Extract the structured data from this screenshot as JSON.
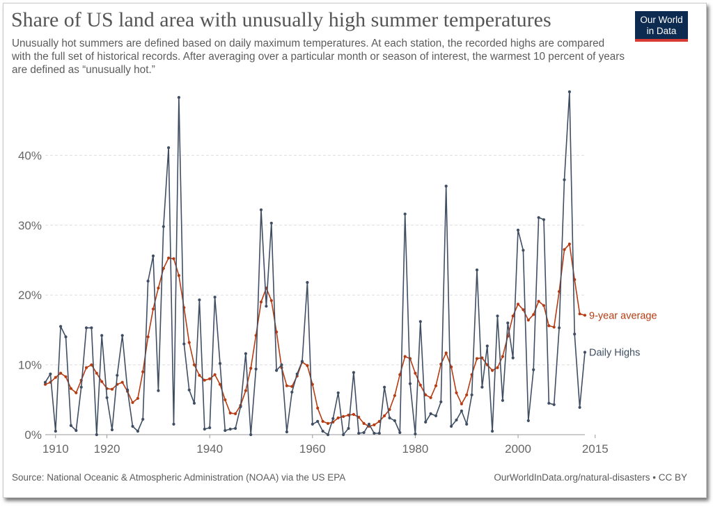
{
  "title": "Share of US land area with unusually high summer temperatures",
  "subtitle": "Unusually hot summers are defined based on daily maximum temperatures. At each station, the recorded highs are compared with the full set of historical records. After averaging over a particular month or season of interest, the warmest 10 percent of years are defined as “unusually hot.”",
  "logo": {
    "line1": "Our World",
    "line2": "in Data"
  },
  "colors": {
    "daily": "#3f4e63",
    "average": "#b53b12",
    "grid": "#dddddd",
    "axis": "#999999"
  },
  "footer": {
    "source": "Source: National Oceanic & Atmospheric Administration (NOAA) via the US EPA",
    "credit": "OurWorldInData.org/natural-disasters • CC BY"
  },
  "chart_data": {
    "type": "line",
    "title": "Share of US land area with unusually high summer temperatures",
    "xlabel": "",
    "ylabel": "",
    "xlim": [
      1910,
      2015
    ],
    "ylim": [
      0,
      50
    ],
    "x_ticks": [
      {
        "value": 1910,
        "label": "1910"
      },
      {
        "value": 1920,
        "label": "1920"
      },
      {
        "value": 1940,
        "label": "1940"
      },
      {
        "value": 1960,
        "label": "1960"
      },
      {
        "value": 1980,
        "label": "1980"
      },
      {
        "value": 2000,
        "label": "2000"
      },
      {
        "value": 2015,
        "label": "2015"
      }
    ],
    "y_ticks": [
      {
        "value": 0,
        "label": "0%"
      },
      {
        "value": 10,
        "label": "10%"
      },
      {
        "value": 20,
        "label": "20%"
      },
      {
        "value": 30,
        "label": "30%"
      },
      {
        "value": 40,
        "label": "40%"
      }
    ],
    "grid": true,
    "series": [
      {
        "name": "Daily Highs",
        "values": [
          7.5,
          8.7,
          0.5,
          15.5,
          14.0,
          1.3,
          0.6,
          6.8,
          15.3,
          15.3,
          0,
          14.2,
          5.3,
          0.7,
          8.5,
          14.2,
          6.4,
          1.2,
          0.5,
          2.2,
          22.0,
          25.6,
          6.3,
          29.8,
          41.1,
          1.5,
          48.3,
          13.0,
          6.4,
          4.5,
          19.3,
          0.8,
          1.0,
          19.7,
          10.2,
          0.6,
          0.8,
          0.9,
          4.0,
          11.6,
          0,
          9.4,
          32.2,
          18.4,
          30.3,
          9.2,
          10.0,
          0.4,
          6.1,
          8.7,
          10.5,
          21.8,
          1.5,
          1.9,
          0.5,
          0,
          2.3,
          6.0,
          0,
          0.9,
          8.9,
          0.2,
          0.3,
          1.5,
          0.2,
          0.2,
          6.8,
          2.4,
          2.0,
          0.3,
          31.6,
          7.3,
          0.1,
          16.2,
          1.8,
          3.0,
          2.7,
          4.7,
          35.6,
          1.2,
          2.1,
          3.4,
          1.5,
          5.7,
          23.6,
          6.8,
          12.7,
          0.5,
          17.0,
          4.9,
          16.0,
          11.0,
          29.3,
          26.4,
          2.0,
          9.3,
          31.1,
          30.8,
          4.5,
          4.3,
          15.3,
          36.5,
          49.1,
          14.4,
          3.9,
          11.8
        ]
      },
      {
        "name": "9-year average",
        "values": [
          7.2,
          7.5,
          8.2,
          8.8,
          8.3,
          6.6,
          6.0,
          7.8,
          9.6,
          10.0,
          8.8,
          7.6,
          6.6,
          6.5,
          7.2,
          7.5,
          6.2,
          4.6,
          5.2,
          9.0,
          14.0,
          18.0,
          21.0,
          23.8,
          25.3,
          25.2,
          22.8,
          18.2,
          13.2,
          10.0,
          8.5,
          7.8,
          8.0,
          8.6,
          7.2,
          5.0,
          3.1,
          3.0,
          4.2,
          6.3,
          9.5,
          14.2,
          19.0,
          21.0,
          19.2,
          14.7,
          9.6,
          7.0,
          6.9,
          8.4,
          10.4,
          9.9,
          7.2,
          3.8,
          1.9,
          1.6,
          1.8,
          2.4,
          2.6,
          2.8,
          2.9,
          2.5,
          1.6,
          1.2,
          1.4,
          1.9,
          2.7,
          3.6,
          5.6,
          8.6,
          11.2,
          10.9,
          8.8,
          7.1,
          5.7,
          5.3,
          7.0,
          10.1,
          11.7,
          9.7,
          6.0,
          4.4,
          5.7,
          8.6,
          10.9,
          11.0,
          10.0,
          9.2,
          9.6,
          11.2,
          14.1,
          17.0,
          18.7,
          17.9,
          16.4,
          17.2,
          19.1,
          18.5,
          15.6,
          15.4,
          20.5,
          26.5,
          27.3,
          22.2,
          17.3,
          17.1
        ]
      }
    ],
    "x": [
      1908,
      1909,
      1910,
      1911,
      1912,
      1913,
      1914,
      1915,
      1916,
      1917,
      1918,
      1919,
      1920,
      1921,
      1922,
      1923,
      1924,
      1925,
      1926,
      1927,
      1928,
      1929,
      1930,
      1931,
      1932,
      1933,
      1934,
      1935,
      1936,
      1937,
      1938,
      1939,
      1940,
      1941,
      1942,
      1943,
      1944,
      1945,
      1946,
      1947,
      1948,
      1949,
      1950,
      1951,
      1952,
      1953,
      1954,
      1955,
      1956,
      1957,
      1958,
      1959,
      1960,
      1961,
      1962,
      1963,
      1964,
      1965,
      1966,
      1967,
      1968,
      1969,
      1970,
      1971,
      1972,
      1973,
      1974,
      1975,
      1976,
      1977,
      1978,
      1979,
      1980,
      1981,
      1982,
      1983,
      1984,
      1985,
      1986,
      1987,
      1988,
      1989,
      1990,
      1991,
      1992,
      1993,
      1994,
      1995,
      1996,
      1997,
      1998,
      1999,
      2000,
      2001,
      2002,
      2003,
      2004,
      2005,
      2006,
      2007,
      2008,
      2009,
      2010,
      2011,
      2012,
      2013
    ]
  }
}
